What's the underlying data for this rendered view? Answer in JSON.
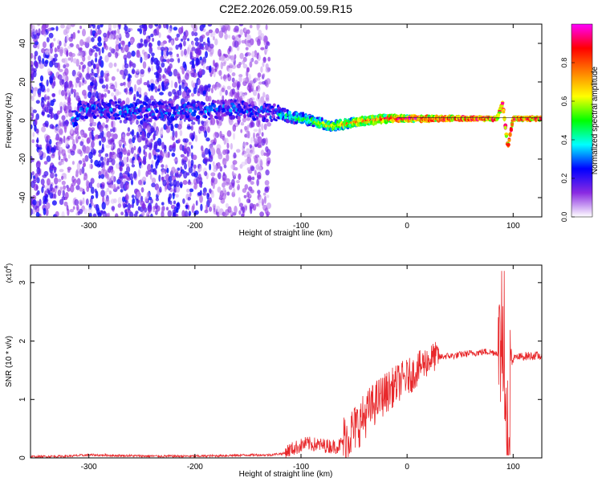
{
  "title": "C2E2.2026.059.00.59.R15",
  "chart_data": [
    {
      "type": "heatmap",
      "xlabel": "Height of straight line (km)",
      "ylabel": "Frequency (Hz)",
      "xlim": [
        -355,
        127
      ],
      "ylim": [
        -50,
        50
      ],
      "xticks": [
        -300,
        -200,
        -100,
        0,
        100
      ],
      "yticks": [
        -40,
        -20,
        0,
        20,
        40
      ],
      "grid": false,
      "colorbar": {
        "label": "Normalized spectral amplitude",
        "range": [
          0,
          1
        ],
        "ticks": [
          0.0,
          0.2,
          0.4,
          0.6,
          0.8
        ],
        "colors": [
          "#ffffff",
          "#8a2be2",
          "#0000ff",
          "#00ffff",
          "#00ff00",
          "#ffff00",
          "#ff8000",
          "#ff0000",
          "#ff00ff"
        ]
      },
      "features": {
        "noise_region_x": [
          -355,
          -130
        ],
        "ridge": [
          {
            "x": -310,
            "y": 6
          },
          {
            "x": -250,
            "y": 5
          },
          {
            "x": -200,
            "y": 5
          },
          {
            "x": -160,
            "y": 6
          },
          {
            "x": -130,
            "y": 4
          },
          {
            "x": -100,
            "y": 1
          },
          {
            "x": -70,
            "y": -3
          },
          {
            "x": -50,
            "y": -1
          },
          {
            "x": -20,
            "y": 1
          },
          {
            "x": 0,
            "y": 1
          },
          {
            "x": 50,
            "y": 1
          },
          {
            "x": 85,
            "y": 1
          },
          {
            "x": 90,
            "y": 9
          },
          {
            "x": 95,
            "y": -14
          },
          {
            "x": 100,
            "y": 1
          },
          {
            "x": 127,
            "y": 1
          }
        ]
      }
    },
    {
      "type": "line",
      "xlabel": "Height of straight line (km)",
      "ylabel": "SNR (10 * v/v)",
      "y_multiplier": "(x10",
      "y_multiplier_exp": "4",
      "y_multiplier_close": ")",
      "xlim": [
        -355,
        127
      ],
      "ylim": [
        0,
        3.3
      ],
      "xticks": [
        -300,
        -200,
        -100,
        0,
        100
      ],
      "yticks": [
        0,
        1,
        2,
        3
      ],
      "grid": false,
      "color": "#e8282b",
      "series": [
        {
          "points": [
            [
              -355,
              0.02
            ],
            [
              -320,
              0.03
            ],
            [
              -300,
              0.05
            ],
            [
              -270,
              0.04
            ],
            [
              -240,
              0.03
            ],
            [
              -200,
              0.03
            ],
            [
              -170,
              0.04
            ],
            [
              -150,
              0.05
            ],
            [
              -130,
              0.05
            ],
            [
              -115,
              0.08
            ],
            [
              -105,
              0.15
            ],
            [
              -95,
              0.22
            ],
            [
              -85,
              0.2
            ],
            [
              -75,
              0.18
            ],
            [
              -65,
              0.17
            ],
            [
              -55,
              0.35
            ],
            [
              -45,
              0.55
            ],
            [
              -35,
              0.8
            ],
            [
              -25,
              1.0
            ],
            [
              -15,
              1.15
            ],
            [
              -5,
              1.3
            ],
            [
              5,
              1.4
            ],
            [
              15,
              1.58
            ],
            [
              25,
              1.7
            ],
            [
              35,
              1.74
            ],
            [
              45,
              1.75
            ],
            [
              55,
              1.78
            ],
            [
              65,
              1.8
            ],
            [
              75,
              1.82
            ],
            [
              85,
              1.8
            ],
            [
              90,
              1.85
            ],
            [
              95,
              1.0
            ],
            [
              100,
              1.7
            ],
            [
              110,
              1.74
            ],
            [
              120,
              1.75
            ],
            [
              127,
              1.74
            ]
          ]
        }
      ]
    }
  ]
}
